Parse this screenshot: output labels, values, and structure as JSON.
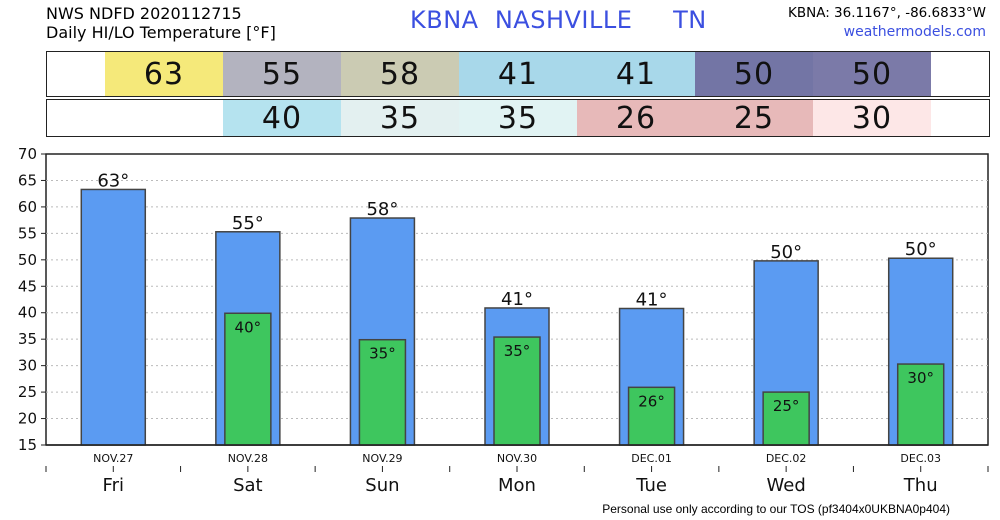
{
  "header": {
    "source_line": "NWS NDFD 2020112715",
    "product_line": "Daily HI/LO Temperature [°F]",
    "station_code": "KBNA",
    "station_city": "NASHVILLE",
    "station_state": "TN",
    "coords": "KBNA: 36.1167°, -86.6833°W",
    "site": "weathermodels.com"
  },
  "hi_row": [
    {
      "value": "63",
      "color": "#f5e97a"
    },
    {
      "value": "55",
      "color": "#b3b3bf"
    },
    {
      "value": "58",
      "color": "#cbcbb3"
    },
    {
      "value": "41",
      "color": "#a8d8ea"
    },
    {
      "value": "41",
      "color": "#a8d8ea"
    },
    {
      "value": "50",
      "color": "#7375a5"
    },
    {
      "value": "50",
      "color": "#7b7aa8"
    }
  ],
  "lo_row": [
    {
      "value": "",
      "color": "#ffffff"
    },
    {
      "value": "40",
      "color": "#b5e3ef"
    },
    {
      "value": "35",
      "color": "#e3f0f0"
    },
    {
      "value": "35",
      "color": "#e1f3f3"
    },
    {
      "value": "26",
      "color": "#e7b9b9"
    },
    {
      "value": "25",
      "color": "#e7b9b9"
    },
    {
      "value": "30",
      "color": "#fde7e7"
    }
  ],
  "footer": "Personal use only according to our TOS (pf3404x0UKBNA0p404)",
  "chart_data": {
    "type": "bar",
    "categories": [
      "NOV.27",
      "NOV.28",
      "NOV.29",
      "NOV.30",
      "DEC.01",
      "DEC.02",
      "DEC.03"
    ],
    "days": [
      "Fri",
      "Sat",
      "Sun",
      "Mon",
      "Tue",
      "Wed",
      "Thu"
    ],
    "series": [
      {
        "values": [
          63.3,
          55.3,
          57.9,
          40.9,
          40.8,
          49.8,
          50.3
        ],
        "labels": [
          "63°",
          "55°",
          "58°",
          "41°",
          "41°",
          "50°",
          "50°"
        ],
        "color": "#5b9bf2"
      },
      {
        "values": [
          null,
          39.9,
          34.9,
          35.4,
          25.9,
          25.0,
          30.3
        ],
        "labels": [
          "",
          "40°",
          "35°",
          "35°",
          "26°",
          "25°",
          "30°"
        ],
        "color": "#3ec65e"
      }
    ],
    "ylim": [
      15,
      70
    ],
    "yticks": [
      15,
      20,
      25,
      30,
      35,
      40,
      45,
      50,
      55,
      60,
      65,
      70
    ],
    "grid": true
  }
}
